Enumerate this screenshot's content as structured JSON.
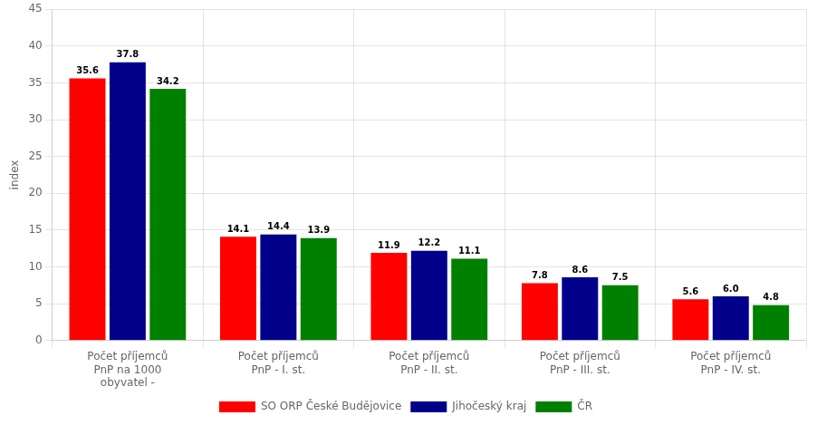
{
  "chart_data": {
    "type": "bar",
    "categories": [
      "Počet příjemců\nPnP na 1000\nobyvatel -",
      "Počet příjemců\nPnP - I. st.",
      "Počet příjemců\nPnP - II. st.",
      "Počet příjemců\nPnP - III. st.",
      "Počet příjemců\nPnP - IV. st."
    ],
    "series": [
      {
        "name": "SO ORP České Budějovice",
        "color": "#ff0000",
        "values": [
          35.6,
          14.1,
          11.9,
          7.8,
          5.6
        ],
        "value_labels": [
          "35.6",
          "14.1",
          "11.9",
          "7.8",
          "5.6"
        ]
      },
      {
        "name": "Jihočeský kraj",
        "color": "#00008b",
        "values": [
          37.8,
          14.4,
          12.2,
          8.6,
          6.0
        ],
        "value_labels": [
          "37.8",
          "14.4",
          "12.2",
          "8.6",
          "6.0"
        ]
      },
      {
        "name": "ČR",
        "color": "#008000",
        "values": [
          34.2,
          13.9,
          11.1,
          7.5,
          4.8
        ],
        "value_labels": [
          "34.2",
          "13.9",
          "11.1",
          "7.5",
          "4.8"
        ]
      }
    ],
    "ylabel": "index",
    "ylim": [
      0,
      45
    ],
    "yticks": [
      0,
      5,
      10,
      15,
      20,
      25,
      30,
      35,
      40,
      45
    ],
    "grid": true,
    "legend": "bottom",
    "data_labels": true
  }
}
